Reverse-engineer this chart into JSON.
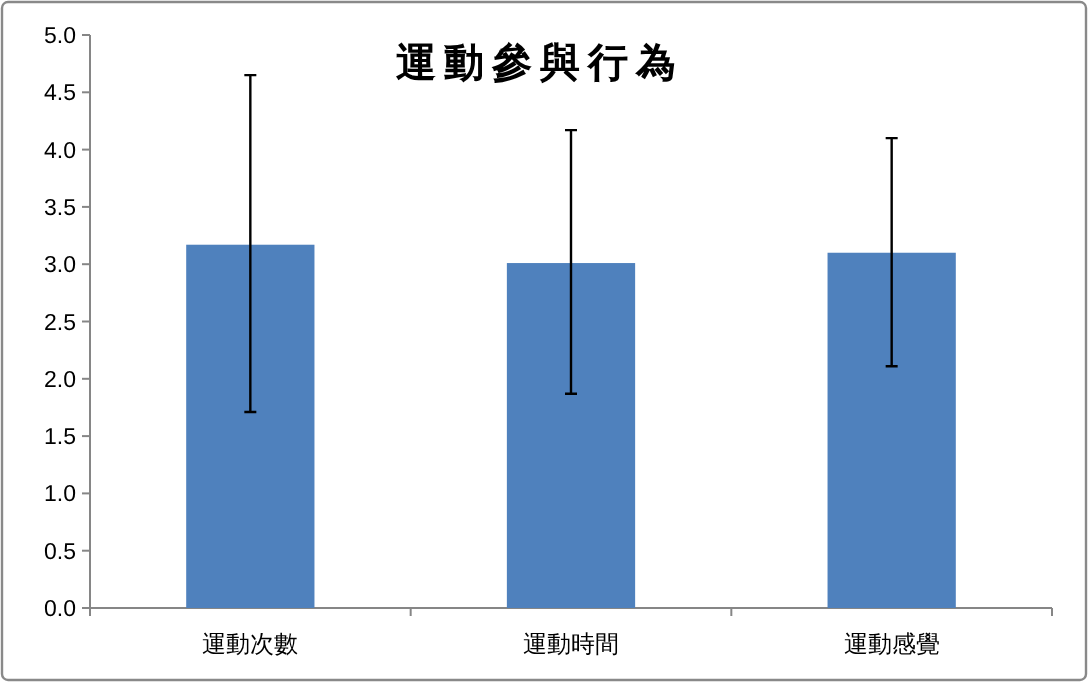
{
  "chart_data": {
    "type": "bar",
    "title": "運動參與行為",
    "categories": [
      "運動次數",
      "運動時間",
      "運動感覺"
    ],
    "values": [
      3.17,
      3.01,
      3.1
    ],
    "errors": [
      [
        1.71,
        4.65
      ],
      [
        1.87,
        4.17
      ],
      [
        2.11,
        4.1
      ]
    ],
    "color": "#4f81bd",
    "ylim": [
      0,
      5
    ],
    "yticks": [
      {
        "value": 0,
        "label": "0.0"
      },
      0.5,
      {
        "value": 1,
        "label": "1.0"
      },
      1.5,
      {
        "value": 2,
        "label": "2.0"
      },
      2.5,
      {
        "value": 3,
        "label": "3.0"
      },
      3.5,
      {
        "value": 4,
        "label": "4.0"
      },
      4.5,
      {
        "value": 5,
        "label": "5.0"
      }
    ],
    "grid": false,
    "legend": false
  }
}
